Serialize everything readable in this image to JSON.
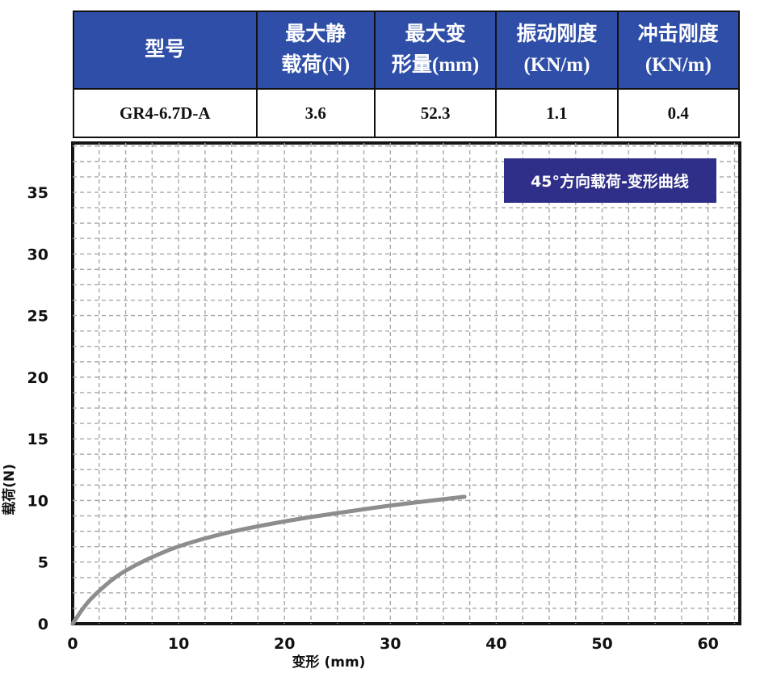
{
  "spec_table": {
    "headers": [
      "型号",
      "最大静\n载荷(N)",
      "最大变\n形量(mm)",
      "振动刚度\n(KN/m)",
      "冲击刚度\n(KN/m)"
    ],
    "row": [
      "GR4-6.7D-A",
      "3.6",
      "52.3",
      "1.1",
      "0.4"
    ],
    "header_color": "#2f4ea8"
  },
  "chart_data": {
    "type": "line",
    "title": "45°方向载荷-变形曲线",
    "xlabel": "变形 (mm)",
    "ylabel": "载荷(N)",
    "xlim": [
      0,
      63
    ],
    "ylim": [
      0,
      39
    ],
    "x_ticks": [
      "0",
      "10",
      "20",
      "30",
      "40",
      "50",
      "60"
    ],
    "y_ticks": [
      "0",
      "5",
      "10",
      "15",
      "20",
      "25",
      "30",
      "35"
    ],
    "grid": true,
    "legend": "top-right",
    "series": [
      {
        "x": [
          0,
          1,
          2,
          4,
          6,
          8,
          10,
          14,
          18,
          22,
          26,
          30,
          34,
          37
        ],
        "y": [
          0,
          1.3,
          2.3,
          3.8,
          4.8,
          5.6,
          6.3,
          7.3,
          8.0,
          8.6,
          9.1,
          9.6,
          10.0,
          10.3
        ],
        "color": "#8d8d8d"
      }
    ]
  }
}
